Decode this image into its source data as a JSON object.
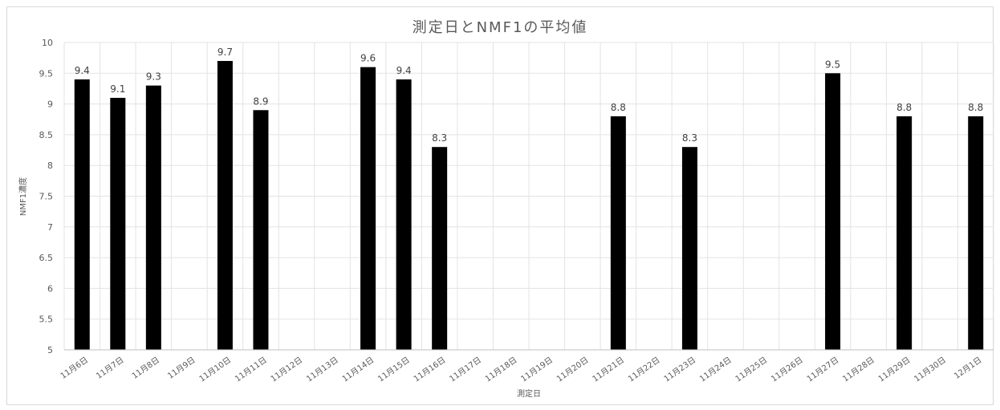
{
  "chart_data": {
    "type": "bar",
    "title": "測定日とNMF1の平均値",
    "xlabel": "測定日",
    "ylabel": "NMF1濃度",
    "ylim": [
      5,
      10
    ],
    "ytick_step": 0.5,
    "yticks": [
      "5",
      "5.5",
      "6",
      "6.5",
      "7",
      "7.5",
      "8",
      "8.5",
      "9",
      "9.5",
      "10"
    ],
    "grid": true,
    "bar_color": "#000000",
    "categories": [
      "11月6日",
      "11月7日",
      "11月8日",
      "11月9日",
      "11月10日",
      "11月11日",
      "11月12日",
      "11月13日",
      "11月14日",
      "11月15日",
      "11月16日",
      "11月17日",
      "11月18日",
      "11月19日",
      "11月20日",
      "11月21日",
      "11月22日",
      "11月23日",
      "11月24日",
      "11月25日",
      "11月26日",
      "11月27日",
      "11月28日",
      "11月29日",
      "11月30日",
      "12月1日"
    ],
    "values": [
      9.4,
      9.1,
      9.3,
      null,
      9.7,
      8.9,
      null,
      null,
      9.6,
      9.4,
      8.3,
      null,
      null,
      null,
      null,
      8.8,
      null,
      8.3,
      null,
      null,
      null,
      9.5,
      null,
      8.8,
      null,
      8.8
    ],
    "data_labels": [
      "9.4",
      "9.1",
      "9.3",
      "",
      "9.7",
      "8.9",
      "",
      "",
      "9.6",
      "9.4",
      "8.3",
      "",
      "",
      "",
      "",
      "8.8",
      "",
      "8.3",
      "",
      "",
      "",
      "9.5",
      "",
      "8.8",
      "",
      "8.8"
    ]
  }
}
